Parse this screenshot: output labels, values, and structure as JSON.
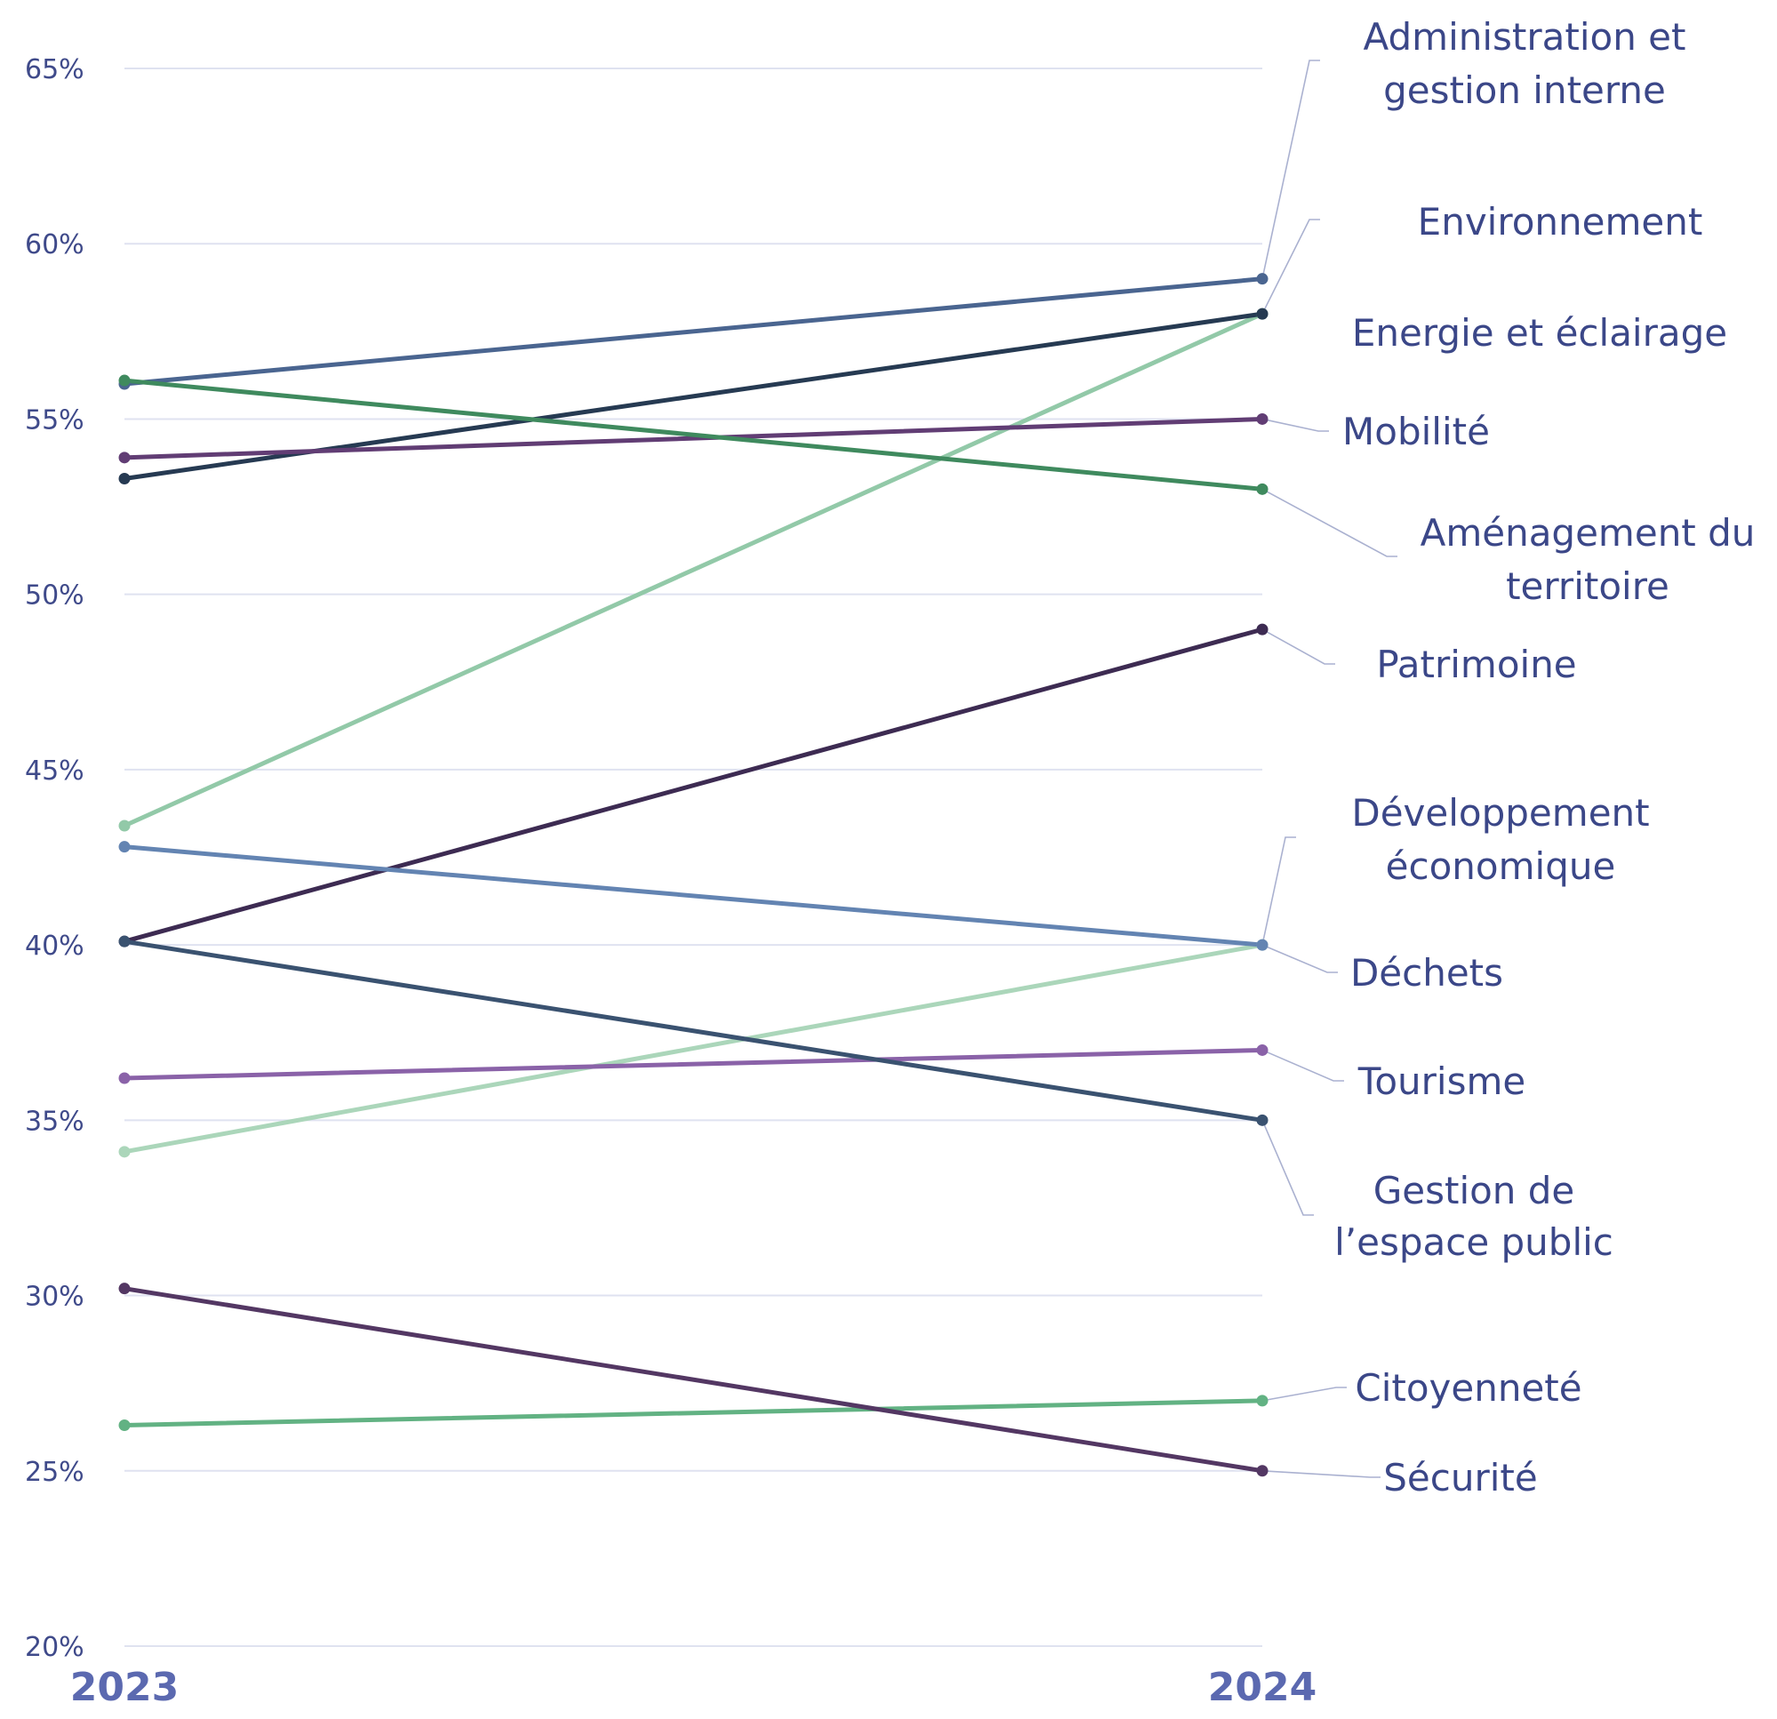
{
  "chart_data": {
    "type": "line",
    "title": "",
    "xlabel": "",
    "ylabel": "",
    "x": [
      "2023",
      "2024"
    ],
    "ylim": [
      20,
      65
    ],
    "yticks": [
      20,
      25,
      30,
      35,
      40,
      45,
      50,
      55,
      60,
      65
    ],
    "ytick_labels": [
      "20%",
      "25%",
      "30%",
      "35%",
      "40%",
      "45%",
      "50%",
      "55%",
      "60%",
      "65%"
    ],
    "grid": true,
    "legend": "direct labels at right",
    "series": [
      {
        "name": "Administration et gestion interne",
        "label_lines": [
          "Administration et",
          "gestion interne"
        ],
        "values": [
          56.0,
          59.0
        ],
        "color": "#4a6590"
      },
      {
        "name": "Environnement",
        "label_lines": [
          "Environnement"
        ],
        "values": [
          43.4,
          58.0
        ],
        "color": "#92c9a8"
      },
      {
        "name": "Energie et éclairage",
        "label_lines": [
          "Energie et éclairage"
        ],
        "values": [
          53.3,
          58.0
        ],
        "color": "#263a52"
      },
      {
        "name": "Mobilité",
        "label_lines": [
          "Mobilité"
        ],
        "values": [
          53.9,
          55.0
        ],
        "color": "#613d74"
      },
      {
        "name": "Aménagement du territoire",
        "label_lines": [
          "Aménagement du",
          "territoire"
        ],
        "values": [
          56.1,
          53.0
        ],
        "color": "#3f8a5e"
      },
      {
        "name": "Patrimoine",
        "label_lines": [
          "Patrimoine"
        ],
        "values": [
          40.1,
          49.0
        ],
        "color": "#3d2b52"
      },
      {
        "name": "Développement économique",
        "label_lines": [
          "Développement",
          "économique"
        ],
        "values": [
          34.1,
          40.0
        ],
        "color": "#abd6ba"
      },
      {
        "name": "Déchets",
        "label_lines": [
          "Déchets"
        ],
        "values": [
          42.8,
          40.0
        ],
        "color": "#6384b2"
      },
      {
        "name": "Tourisme",
        "label_lines": [
          "Tourisme"
        ],
        "values": [
          36.2,
          37.0
        ],
        "color": "#8a62a8"
      },
      {
        "name": "Gestion de l’espace public",
        "label_lines": [
          "Gestion de",
          "l’espace public"
        ],
        "values": [
          40.1,
          35.0
        ],
        "color": "#3a5270"
      },
      {
        "name": "Citoyenneté",
        "label_lines": [
          "Citoyenneté"
        ],
        "values": [
          26.3,
          27.0
        ],
        "color": "#62b283"
      },
      {
        "name": "Sécurité",
        "label_lines": [
          "Sécurité"
        ],
        "values": [
          30.2,
          25.0
        ],
        "color": "#533763"
      }
    ]
  }
}
